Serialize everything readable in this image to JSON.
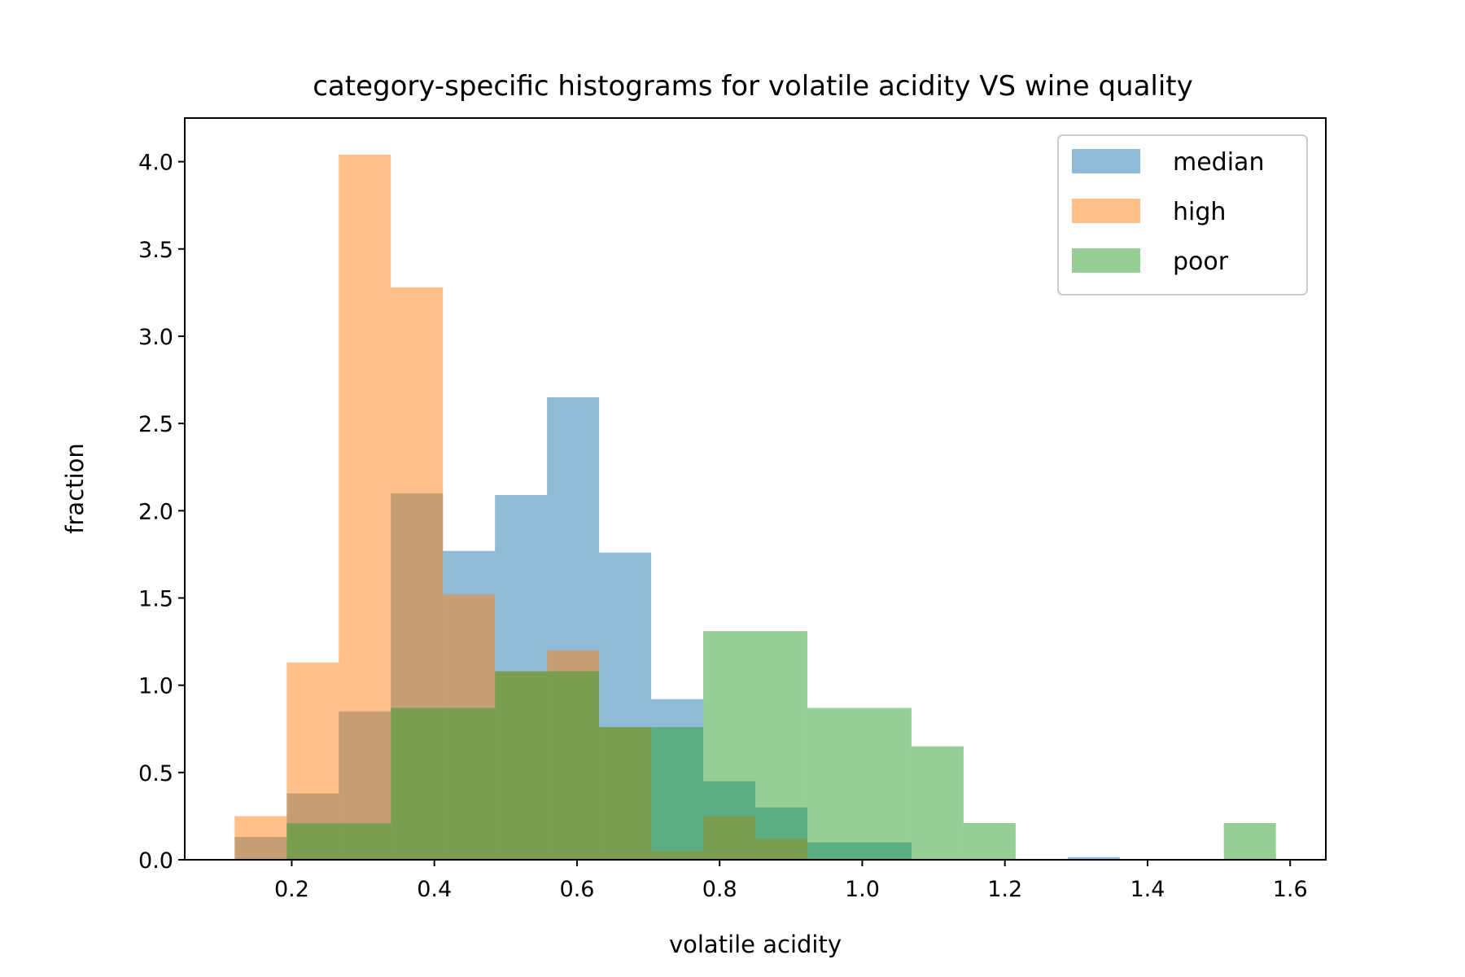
{
  "chart_data": {
    "type": "bar",
    "subtype": "overlapping-histogram",
    "title": "category-specific histograms for volatile acidity VS wine quality",
    "xlabel": "volatile acidity",
    "ylabel": "fraction",
    "xlim": [
      0.05,
      1.65
    ],
    "ylim": [
      0,
      4.25
    ],
    "xticks": [
      "0.2",
      "0.4",
      "0.6",
      "0.8",
      "1.0",
      "1.2",
      "1.4",
      "1.6"
    ],
    "xtick_values": [
      0.2,
      0.4,
      0.6,
      0.8,
      1.0,
      1.2,
      1.4,
      1.6
    ],
    "yticks": [
      "0.0",
      "0.5",
      "1.0",
      "1.5",
      "2.0",
      "2.5",
      "3.0",
      "3.5",
      "4.0"
    ],
    "ytick_values": [
      0,
      0.5,
      1.0,
      1.5,
      2.0,
      2.5,
      3.0,
      3.5,
      4.0
    ],
    "grid": false,
    "legend_position": "upper right",
    "series": [
      {
        "name": "median",
        "color": "#1f77b4",
        "alpha": 0.5,
        "bins": [
          {
            "x0": 0.12,
            "x1": 0.193,
            "value": 0.13
          },
          {
            "x0": 0.193,
            "x1": 0.266,
            "value": 0.38
          },
          {
            "x0": 0.266,
            "x1": 0.339,
            "value": 0.85
          },
          {
            "x0": 0.339,
            "x1": 0.412,
            "value": 2.1
          },
          {
            "x0": 0.412,
            "x1": 0.485,
            "value": 1.77
          },
          {
            "x0": 0.485,
            "x1": 0.558,
            "value": 2.09
          },
          {
            "x0": 0.558,
            "x1": 0.631,
            "value": 2.65
          },
          {
            "x0": 0.631,
            "x1": 0.704,
            "value": 1.76
          },
          {
            "x0": 0.704,
            "x1": 0.777,
            "value": 0.92
          },
          {
            "x0": 0.777,
            "x1": 0.85,
            "value": 0.45
          },
          {
            "x0": 0.85,
            "x1": 0.923,
            "value": 0.3
          },
          {
            "x0": 0.923,
            "x1": 0.996,
            "value": 0.1
          },
          {
            "x0": 0.996,
            "x1": 1.069,
            "value": 0.1
          },
          {
            "x0": 1.215,
            "x1": 1.288,
            "value": 0.005
          },
          {
            "x0": 1.288,
            "x1": 1.361,
            "value": 0.015
          }
        ]
      },
      {
        "name": "high",
        "color": "#ff7f0e",
        "alpha": 0.5,
        "bins": [
          {
            "x0": 0.12,
            "x1": 0.193,
            "value": 0.25
          },
          {
            "x0": 0.193,
            "x1": 0.266,
            "value": 1.13
          },
          {
            "x0": 0.266,
            "x1": 0.339,
            "value": 4.04
          },
          {
            "x0": 0.339,
            "x1": 0.412,
            "value": 3.28
          },
          {
            "x0": 0.412,
            "x1": 0.485,
            "value": 1.52
          },
          {
            "x0": 0.485,
            "x1": 0.558,
            "value": 1.08
          },
          {
            "x0": 0.558,
            "x1": 0.631,
            "value": 1.2
          },
          {
            "x0": 0.631,
            "x1": 0.704,
            "value": 0.76
          },
          {
            "x0": 0.704,
            "x1": 0.777,
            "value": 0.05
          },
          {
            "x0": 0.777,
            "x1": 0.85,
            "value": 0.25
          },
          {
            "x0": 0.85,
            "x1": 0.923,
            "value": 0.12
          }
        ]
      },
      {
        "name": "poor",
        "color": "#2ca02c",
        "alpha": 0.5,
        "bins": [
          {
            "x0": 0.193,
            "x1": 0.339,
            "value": 0.21
          },
          {
            "x0": 0.339,
            "x1": 0.485,
            "value": 0.87
          },
          {
            "x0": 0.485,
            "x1": 0.631,
            "value": 1.08
          },
          {
            "x0": 0.631,
            "x1": 0.777,
            "value": 0.76
          },
          {
            "x0": 0.777,
            "x1": 0.923,
            "value": 1.31
          },
          {
            "x0": 0.923,
            "x1": 1.069,
            "value": 0.87
          },
          {
            "x0": 1.069,
            "x1": 1.142,
            "value": 0.65
          },
          {
            "x0": 1.142,
            "x1": 1.215,
            "value": 0.21
          },
          {
            "x0": 1.507,
            "x1": 1.58,
            "value": 0.21
          }
        ]
      }
    ]
  }
}
